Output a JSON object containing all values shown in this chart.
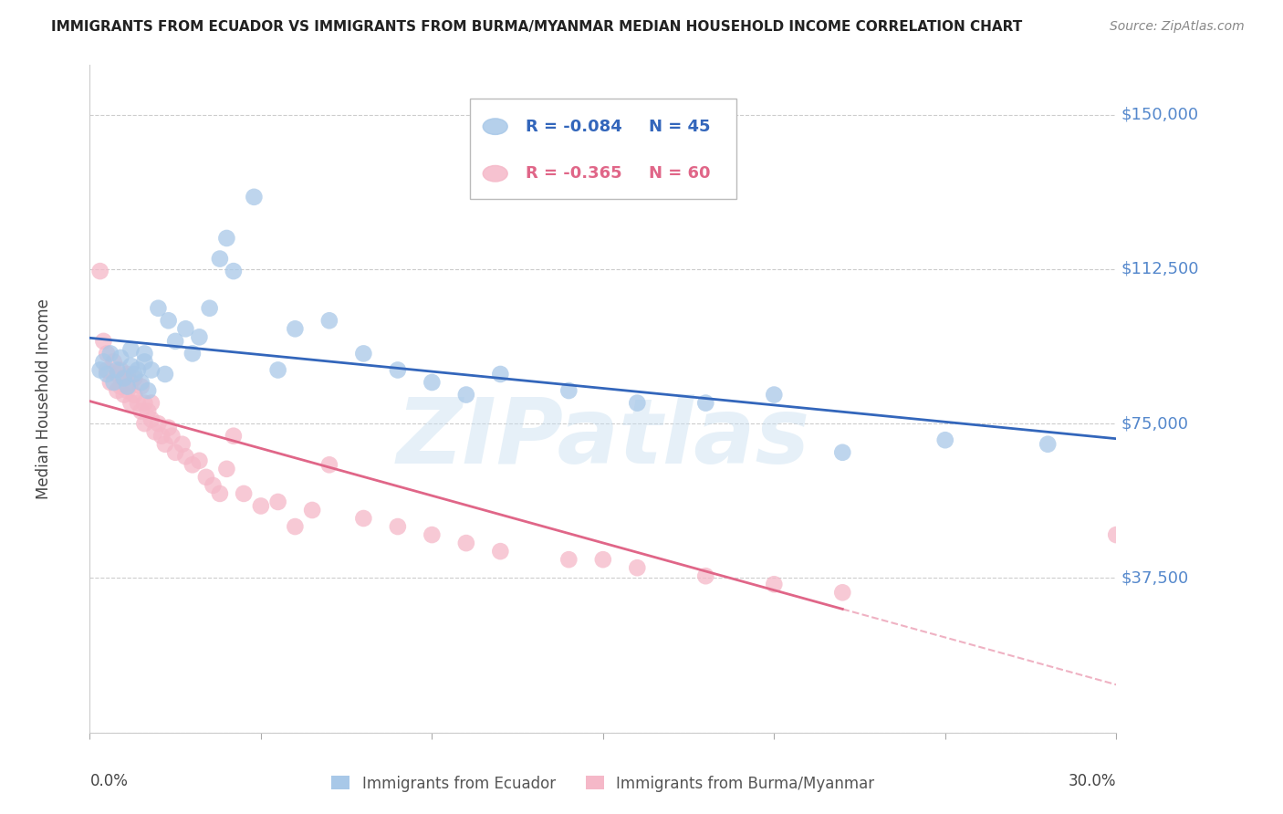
{
  "title": "IMMIGRANTS FROM ECUADOR VS IMMIGRANTS FROM BURMA/MYANMAR MEDIAN HOUSEHOLD INCOME CORRELATION CHART",
  "source": "Source: ZipAtlas.com",
  "ylabel": "Median Household Income",
  "yticks": [
    0,
    37500,
    75000,
    112500,
    150000
  ],
  "ytick_labels": [
    "",
    "$37,500",
    "$75,000",
    "$112,500",
    "$150,000"
  ],
  "ylim": [
    0,
    162000
  ],
  "xlim": [
    0.0,
    0.3
  ],
  "ecuador_color": "#a8c8e8",
  "ecuador_color_line": "#3366bb",
  "burma_color": "#f5b8c8",
  "burma_color_line": "#e06688",
  "legend_R_ecuador": "R = -0.084",
  "legend_N_ecuador": "N = 45",
  "legend_R_burma": "R = -0.365",
  "legend_N_burma": "N = 60",
  "watermark": "ZIPatlas",
  "ecuador_scatter_x": [
    0.003,
    0.004,
    0.005,
    0.006,
    0.007,
    0.008,
    0.009,
    0.01,
    0.011,
    0.012,
    0.012,
    0.013,
    0.014,
    0.015,
    0.016,
    0.016,
    0.017,
    0.018,
    0.02,
    0.022,
    0.023,
    0.025,
    0.028,
    0.03,
    0.032,
    0.035,
    0.038,
    0.04,
    0.042,
    0.048,
    0.055,
    0.06,
    0.07,
    0.08,
    0.09,
    0.1,
    0.11,
    0.12,
    0.14,
    0.16,
    0.18,
    0.2,
    0.22,
    0.25,
    0.28
  ],
  "ecuador_scatter_y": [
    88000,
    90000,
    87000,
    92000,
    85000,
    88000,
    91000,
    86000,
    84000,
    89000,
    93000,
    87000,
    88000,
    85000,
    90000,
    92000,
    83000,
    88000,
    103000,
    87000,
    100000,
    95000,
    98000,
    92000,
    96000,
    103000,
    115000,
    120000,
    112000,
    130000,
    88000,
    98000,
    100000,
    92000,
    88000,
    85000,
    82000,
    87000,
    83000,
    80000,
    80000,
    82000,
    68000,
    71000,
    70000
  ],
  "burma_scatter_x": [
    0.003,
    0.004,
    0.005,
    0.005,
    0.006,
    0.007,
    0.008,
    0.008,
    0.009,
    0.009,
    0.01,
    0.01,
    0.011,
    0.011,
    0.012,
    0.012,
    0.013,
    0.013,
    0.014,
    0.015,
    0.015,
    0.016,
    0.016,
    0.017,
    0.018,
    0.018,
    0.019,
    0.02,
    0.021,
    0.022,
    0.023,
    0.024,
    0.025,
    0.027,
    0.028,
    0.03,
    0.032,
    0.034,
    0.036,
    0.038,
    0.04,
    0.042,
    0.045,
    0.05,
    0.055,
    0.06,
    0.065,
    0.07,
    0.08,
    0.09,
    0.1,
    0.11,
    0.12,
    0.14,
    0.15,
    0.16,
    0.18,
    0.2,
    0.22,
    0.3
  ],
  "burma_scatter_y": [
    112000,
    95000,
    92000,
    88000,
    85000,
    90000,
    87000,
    83000,
    88000,
    84000,
    86000,
    82000,
    87000,
    83000,
    85000,
    80000,
    82000,
    86000,
    80000,
    84000,
    78000,
    80000,
    75000,
    78000,
    76000,
    80000,
    73000,
    75000,
    72000,
    70000,
    74000,
    72000,
    68000,
    70000,
    67000,
    65000,
    66000,
    62000,
    60000,
    58000,
    64000,
    72000,
    58000,
    55000,
    56000,
    50000,
    54000,
    65000,
    52000,
    50000,
    48000,
    46000,
    44000,
    42000,
    42000,
    40000,
    38000,
    36000,
    34000,
    48000
  ]
}
